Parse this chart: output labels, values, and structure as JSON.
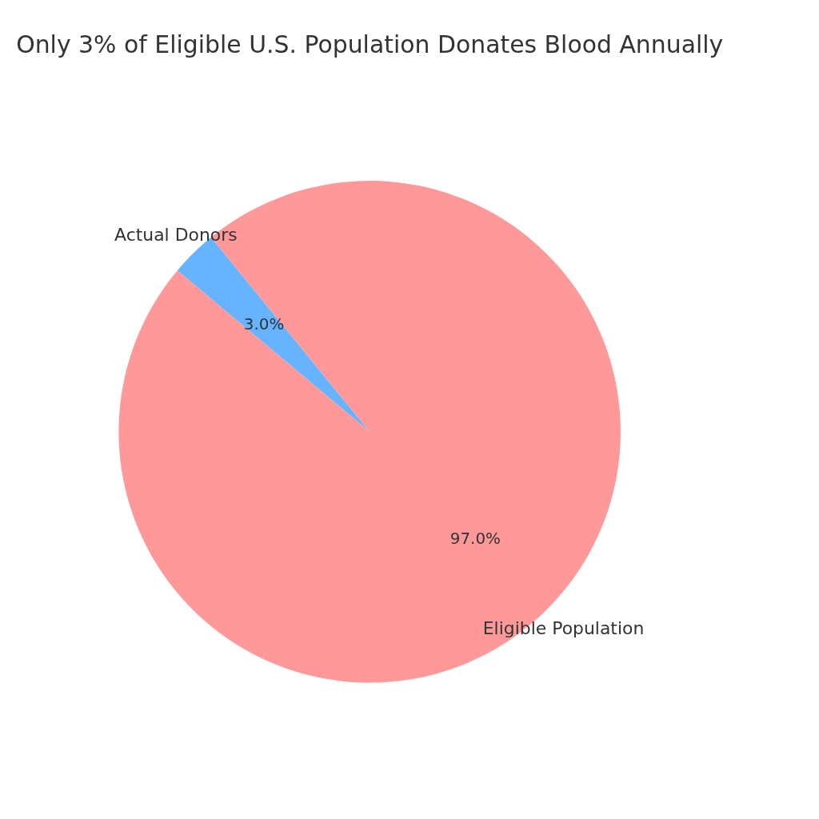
{
  "chart_data": {
    "type": "pie",
    "title": "Only 3% of Eligible U.S. Population Donates Blood Annually",
    "categories": [
      "Actual Donors",
      "Eligible Population"
    ],
    "values": [
      3.0,
      97.0
    ],
    "colors": [
      "#66b3ff",
      "#ff9999"
    ],
    "value_labels": [
      "3.0%",
      "97.0%"
    ],
    "legend": false
  }
}
